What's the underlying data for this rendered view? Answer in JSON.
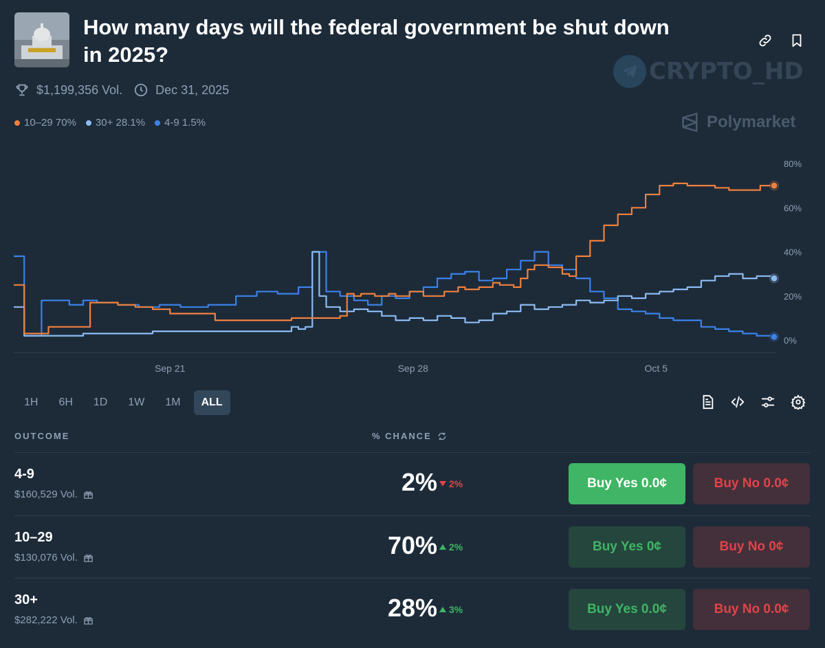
{
  "market": {
    "title": "How many days will the federal government be shut down in 2025?",
    "volume": "$1,199,356 Vol.",
    "end_date": "Dec 31, 2025",
    "thumbnail_icon": "capitol-building-image"
  },
  "header_icons": [
    "link-icon",
    "bookmark-icon"
  ],
  "watermark": {
    "text": "CRYPTO_HD",
    "icon": "telegram-icon"
  },
  "brand": {
    "text": "Polymarket",
    "icon": "polymarket-logo-icon"
  },
  "legend": [
    {
      "label": "10–29 70%",
      "color": "#f0803c"
    },
    {
      "label": "30+ 28.1%",
      "color": "#8cbcf3"
    },
    {
      "label": "4-9 1.5%",
      "color": "#3b82e8"
    }
  ],
  "chart_data": {
    "type": "line",
    "y_ticks": [
      "80%",
      "60%",
      "40%",
      "20%",
      "0%"
    ],
    "ylim": [
      0,
      80
    ],
    "x_ticks": [
      {
        "label": "Sep 21",
        "day": 4.5
      },
      {
        "label": "Sep 28",
        "day": 11.5
      },
      {
        "label": "Oct 5",
        "day": 18.5
      }
    ],
    "x_range_days": [
      0,
      21.9
    ],
    "series": [
      {
        "name": "10–29",
        "color": "#f0803c",
        "last_value": 70,
        "points": [
          [
            0,
            25
          ],
          [
            0.3,
            3
          ],
          [
            1,
            6
          ],
          [
            1.8,
            6
          ],
          [
            2,
            6
          ],
          [
            2.2,
            17
          ],
          [
            3,
            16
          ],
          [
            3.5,
            15
          ],
          [
            3.8,
            15
          ],
          [
            4,
            14
          ],
          [
            4.5,
            12
          ],
          [
            5,
            12
          ],
          [
            5.4,
            12
          ],
          [
            5.8,
            9
          ],
          [
            6.5,
            9
          ],
          [
            7.5,
            9
          ],
          [
            8,
            10
          ],
          [
            8.6,
            10
          ],
          [
            9,
            10
          ],
          [
            9.4,
            11
          ],
          [
            9.6,
            21
          ],
          [
            9.8,
            20
          ],
          [
            10,
            21
          ],
          [
            10.4,
            20
          ],
          [
            10.8,
            21
          ],
          [
            11,
            20
          ],
          [
            11.4,
            22
          ],
          [
            11.8,
            20
          ],
          [
            12,
            20
          ],
          [
            12.4,
            22
          ],
          [
            12.8,
            24
          ],
          [
            13,
            23
          ],
          [
            13.4,
            24
          ],
          [
            13.8,
            26
          ],
          [
            14,
            25
          ],
          [
            14.4,
            24
          ],
          [
            14.6,
            28
          ],
          [
            14.8,
            32
          ],
          [
            15,
            34
          ],
          [
            15.4,
            33
          ],
          [
            15.8,
            30
          ],
          [
            16,
            29
          ],
          [
            16.2,
            38
          ],
          [
            16.6,
            45
          ],
          [
            17,
            52
          ],
          [
            17.4,
            57
          ],
          [
            17.8,
            60
          ],
          [
            18.2,
            66
          ],
          [
            18.6,
            70
          ],
          [
            19,
            71
          ],
          [
            19.4,
            70
          ],
          [
            19.8,
            70
          ],
          [
            20.2,
            69
          ],
          [
            20.6,
            68
          ],
          [
            21,
            68
          ],
          [
            21.5,
            70
          ],
          [
            21.9,
            70
          ]
        ]
      },
      {
        "name": "30+",
        "color": "#8cbcf3",
        "last_value": 28.1,
        "points": [
          [
            0,
            15
          ],
          [
            0.3,
            2
          ],
          [
            1,
            2
          ],
          [
            2,
            3
          ],
          [
            3,
            3
          ],
          [
            4,
            4
          ],
          [
            5,
            4
          ],
          [
            6,
            4
          ],
          [
            7,
            4
          ],
          [
            7.6,
            4
          ],
          [
            8,
            6
          ],
          [
            8.2,
            5
          ],
          [
            8.4,
            6
          ],
          [
            8.6,
            40
          ],
          [
            8.8,
            20
          ],
          [
            9,
            15
          ],
          [
            9.4,
            13
          ],
          [
            9.8,
            14
          ],
          [
            10.2,
            13
          ],
          [
            10.6,
            11
          ],
          [
            11,
            9
          ],
          [
            11.4,
            10
          ],
          [
            11.8,
            9
          ],
          [
            12.2,
            11
          ],
          [
            12.6,
            10
          ],
          [
            13,
            8
          ],
          [
            13.4,
            9
          ],
          [
            13.8,
            12
          ],
          [
            14.2,
            13
          ],
          [
            14.6,
            16
          ],
          [
            15,
            14
          ],
          [
            15.4,
            15
          ],
          [
            15.8,
            16
          ],
          [
            16.2,
            18
          ],
          [
            16.6,
            17
          ],
          [
            17,
            18
          ],
          [
            17.4,
            20
          ],
          [
            17.8,
            19
          ],
          [
            18.2,
            21
          ],
          [
            18.6,
            22
          ],
          [
            19,
            23
          ],
          [
            19.4,
            24
          ],
          [
            19.8,
            27
          ],
          [
            20.2,
            29
          ],
          [
            20.6,
            30
          ],
          [
            21,
            28
          ],
          [
            21.4,
            29
          ],
          [
            21.9,
            28
          ]
        ]
      },
      {
        "name": "4-9",
        "color": "#3b82e8",
        "last_value": 1.5,
        "points": [
          [
            0,
            38
          ],
          [
            0.3,
            2
          ],
          [
            0.8,
            18
          ],
          [
            1.6,
            16
          ],
          [
            2,
            18
          ],
          [
            2.4,
            17
          ],
          [
            3,
            16
          ],
          [
            3.6,
            15
          ],
          [
            4.2,
            16
          ],
          [
            4.8,
            15
          ],
          [
            5.6,
            16
          ],
          [
            6.4,
            20
          ],
          [
            7,
            22
          ],
          [
            7.6,
            21
          ],
          [
            8.2,
            24
          ],
          [
            8.6,
            40
          ],
          [
            9,
            22
          ],
          [
            9.4,
            20
          ],
          [
            9.8,
            18
          ],
          [
            10.2,
            16
          ],
          [
            10.6,
            20
          ],
          [
            11,
            19
          ],
          [
            11.4,
            22
          ],
          [
            11.8,
            24
          ],
          [
            12.2,
            28
          ],
          [
            12.6,
            30
          ],
          [
            13,
            31
          ],
          [
            13.4,
            27
          ],
          [
            13.8,
            28
          ],
          [
            14.2,
            32
          ],
          [
            14.6,
            36
          ],
          [
            15,
            40
          ],
          [
            15.4,
            34
          ],
          [
            15.8,
            32
          ],
          [
            16.2,
            28
          ],
          [
            16.6,
            22
          ],
          [
            17,
            19
          ],
          [
            17.4,
            14
          ],
          [
            17.8,
            13
          ],
          [
            18.2,
            12
          ],
          [
            18.6,
            10
          ],
          [
            19,
            9
          ],
          [
            19.4,
            9
          ],
          [
            19.8,
            6
          ],
          [
            20.2,
            5
          ],
          [
            20.6,
            4
          ],
          [
            21,
            3
          ],
          [
            21.4,
            2
          ],
          [
            21.9,
            1.5
          ]
        ]
      }
    ]
  },
  "range_buttons": [
    "1H",
    "6H",
    "1D",
    "1W",
    "1M",
    "ALL"
  ],
  "active_range": "ALL",
  "tool_icons": [
    "document-icon",
    "code-icon",
    "sliders-icon",
    "gear-icon"
  ],
  "columns": {
    "outcome": "OUTCOME",
    "chance": "% CHANCE"
  },
  "outcomes": [
    {
      "name": "4-9",
      "volume": "$160,529 Vol.",
      "chance": "2%",
      "change": "2%",
      "direction": "down",
      "yes": "Buy Yes 0.0¢",
      "no": "Buy No 0.0¢",
      "yes_style": "bright"
    },
    {
      "name": "10–29",
      "volume": "$130,076 Vol.",
      "chance": "70%",
      "change": "2%",
      "direction": "up",
      "yes": "Buy Yes 0¢",
      "no": "Buy No 0¢",
      "yes_style": "dim"
    },
    {
      "name": "30+",
      "volume": "$282,222 Vol.",
      "chance": "28%",
      "change": "3%",
      "direction": "up",
      "yes": "Buy Yes 0.0¢",
      "no": "Buy No 0.0¢",
      "yes_style": "dim"
    }
  ]
}
